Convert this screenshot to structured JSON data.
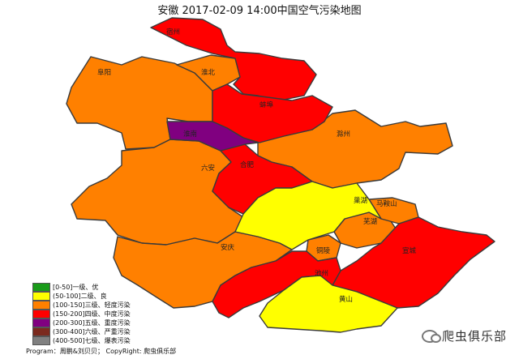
{
  "title": "安徽 2017-02-09 14:00中国空气污染地图",
  "colors": {
    "lv1": "#1a9b1a",
    "lv2": "#ffff00",
    "lv3": "#ff8000",
    "lv4": "#ff0000",
    "lv5": "#800080",
    "lv6": "#7b2a1e",
    "lv7": "#808080"
  },
  "legend": [
    {
      "label": "[0-50]一级、优",
      "color": "#1a9b1a"
    },
    {
      "label": "(50-100]二级、良",
      "color": "#ffff00"
    },
    {
      "label": "(100-150]三级、轻度污染",
      "color": "#ff8000"
    },
    {
      "label": "(150-200]四级、中度污染",
      "color": "#ff0000"
    },
    {
      "label": "(200-300]五级、重度污染",
      "color": "#800080"
    },
    {
      "label": "(300-400]六级、严重污染",
      "color": "#7b2a1e"
    },
    {
      "label": "(400-500]七级、爆表污染",
      "color": "#808080"
    }
  ],
  "cities": {
    "suzhou": "宿州",
    "huaibei": "淮北",
    "fuyang": "阜阳",
    "bengbu": "蚌埠",
    "huainan": "淮南",
    "chuzhou": "滁州",
    "luan": "六安",
    "hefei": "合肥",
    "chaohu": "巢湖",
    "maanshan": "马鞍山",
    "wuhu": "芜湖",
    "anqing": "安庆",
    "tongling": "铜陵",
    "xuancheng": "宣城",
    "chizhou": "池州",
    "huangshan": "黄山"
  },
  "footer": "Program：周鹏&刘贝贝； CopyRight: 爬虫俱乐部",
  "watermark": "爬虫俱乐部"
}
